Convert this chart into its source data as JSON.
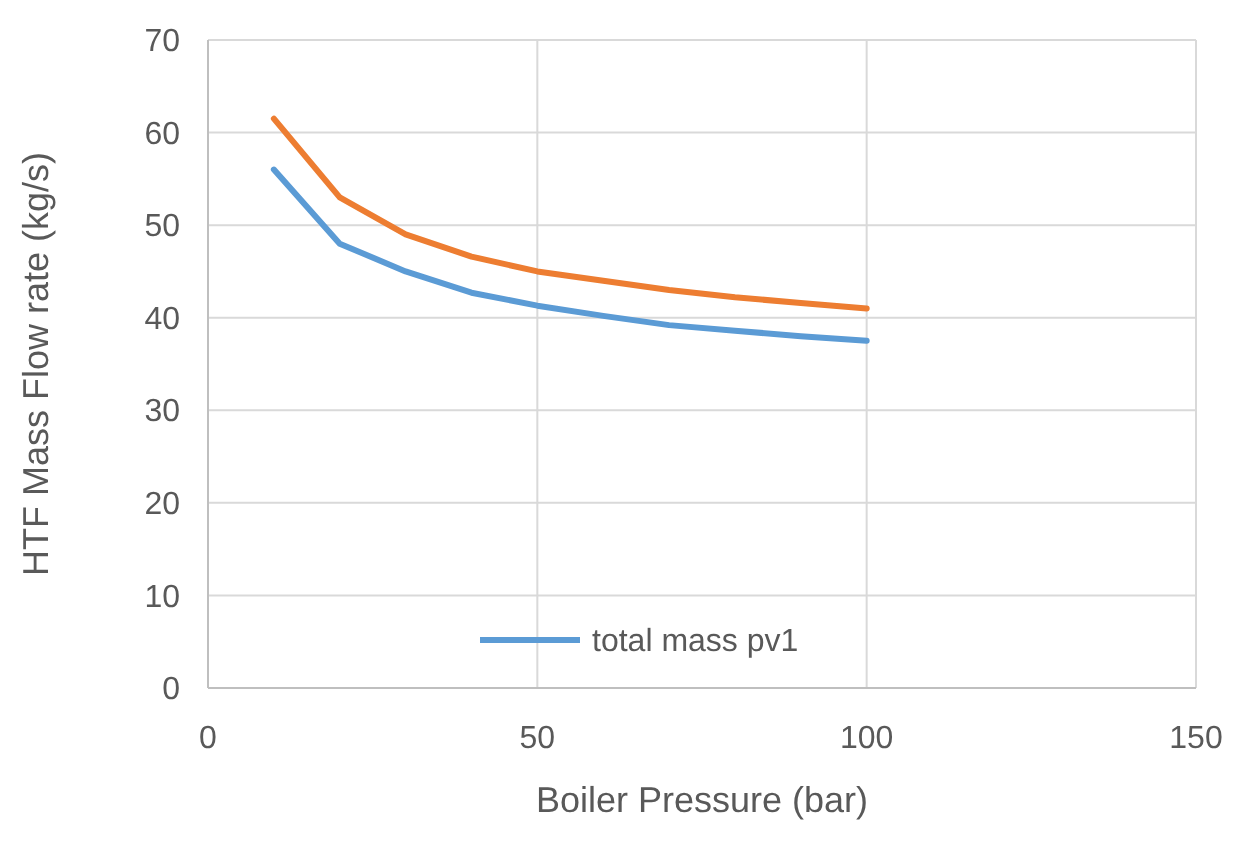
{
  "chart_data": {
    "type": "line",
    "xlabel": "Boiler Pressure (bar)",
    "ylabel": "HTF Mass Flow rate (kg/s)",
    "x": [
      10,
      20,
      30,
      40,
      50,
      60,
      70,
      80,
      90,
      100
    ],
    "series": [
      {
        "name": "total mass pv1",
        "color": "#5b9bd5",
        "values": [
          56,
          48,
          45,
          42.7,
          41.3,
          40.2,
          39.2,
          38.6,
          38,
          37.5
        ]
      },
      {
        "color": "#ed7d31",
        "values": [
          61.5,
          53,
          49,
          46.6,
          45,
          44,
          43,
          42.2,
          41.6,
          41
        ]
      }
    ],
    "xlim": [
      0,
      150
    ],
    "xticks": [
      0,
      50,
      100,
      150
    ],
    "ylim": [
      0,
      70
    ],
    "yticks": [
      0,
      10,
      20,
      30,
      40,
      50,
      60,
      70
    ],
    "grid": true,
    "legend": "bottom",
    "marker": "none",
    "line_style": "solid"
  }
}
